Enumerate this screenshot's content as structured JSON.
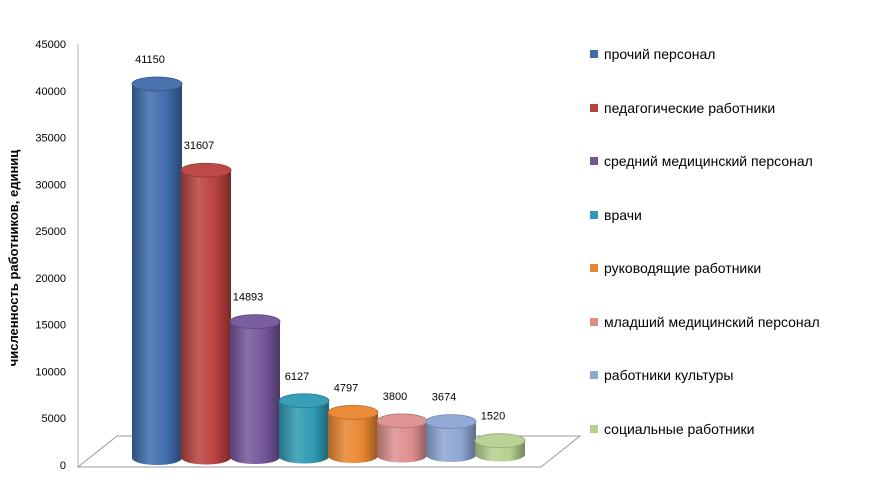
{
  "chart_data": {
    "type": "bar",
    "ylabel": "численность работников, единиц",
    "ylim": [
      0,
      45000
    ],
    "yticks": [
      0,
      5000,
      10000,
      15000,
      20000,
      25000,
      30000,
      35000,
      40000,
      45000
    ],
    "legend_position": "right",
    "series": [
      {
        "name": "прочий персонал",
        "value": 41150,
        "color": "#3F6CAB"
      },
      {
        "name": "педагогические работники",
        "value": 31607,
        "color": "#B8413E"
      },
      {
        "name": "средний медицинский персонал",
        "value": 14893,
        "color": "#73559A"
      },
      {
        "name": "врачи",
        "value": 6127,
        "color": "#2E9AB3"
      },
      {
        "name": "руководящие работники",
        "value": 4797,
        "color": "#E8862F"
      },
      {
        "name": "младший медицинский персонал",
        "value": 3800,
        "color": "#DC8F8D"
      },
      {
        "name": "работники культуры",
        "value": 3674,
        "color": "#8EA6D4"
      },
      {
        "name": "социальные работники",
        "value": 1520,
        "color": "#B6D08E"
      }
    ]
  }
}
